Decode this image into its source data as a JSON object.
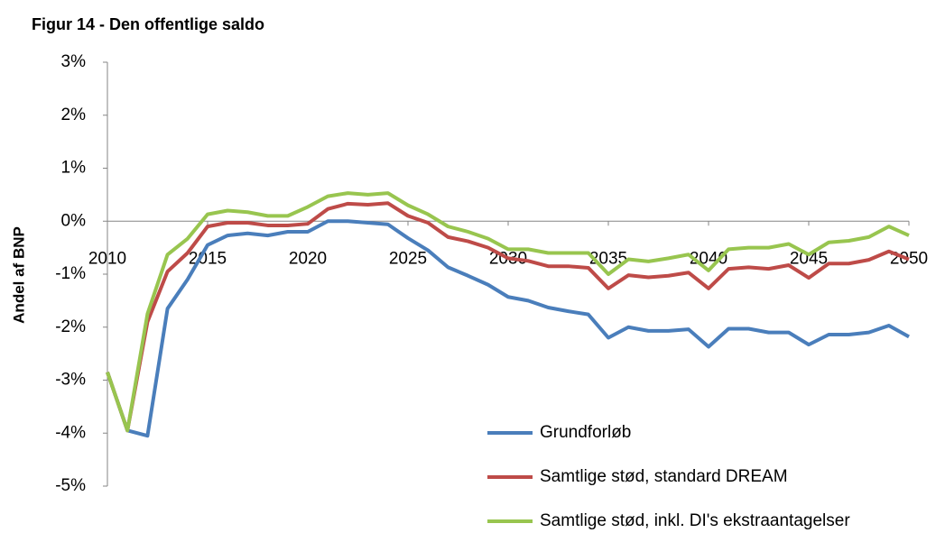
{
  "chart_data": {
    "type": "line",
    "title": "Figur 14 - Den offentlige saldo",
    "y_label": "Andel af BNP",
    "x": [
      2010,
      2011,
      2012,
      2013,
      2014,
      2015,
      2016,
      2017,
      2018,
      2019,
      2020,
      2021,
      2022,
      2023,
      2024,
      2025,
      2026,
      2027,
      2028,
      2029,
      2030,
      2031,
      2032,
      2033,
      2034,
      2035,
      2036,
      2037,
      2038,
      2039,
      2040,
      2041,
      2042,
      2043,
      2044,
      2045,
      2046,
      2047,
      2048,
      2049,
      2050
    ],
    "xlim": [
      2010,
      2050
    ],
    "xticks": [
      2010,
      2015,
      2020,
      2025,
      2030,
      2035,
      2040,
      2045,
      2050
    ],
    "ylim": [
      -5,
      3
    ],
    "yticks": [
      {
        "value": -5,
        "label": "-5%"
      },
      {
        "value": -4,
        "label": "-4%"
      },
      {
        "value": -3,
        "label": "-3%"
      },
      {
        "value": -2,
        "label": "-2%"
      },
      {
        "value": -1,
        "label": "-1%"
      },
      {
        "value": 0,
        "label": "0%"
      },
      {
        "value": 1,
        "label": "1%"
      },
      {
        "value": 2,
        "label": "2%"
      },
      {
        "value": 3,
        "label": "3%"
      }
    ],
    "grid": false,
    "series": [
      {
        "name": "Grundforløb",
        "color": "#4a7ebb",
        "values": [
          -2.85,
          -3.95,
          -4.05,
          -1.65,
          -1.1,
          -0.45,
          -0.27,
          -0.23,
          -0.27,
          -0.2,
          -0.2,
          0.0,
          0.0,
          -0.03,
          -0.06,
          -0.32,
          -0.55,
          -0.87,
          -1.03,
          -1.2,
          -1.43,
          -1.5,
          -1.63,
          -1.7,
          -1.76,
          -2.2,
          -2.0,
          -2.07,
          -2.07,
          -2.04,
          -2.37,
          -2.03,
          -2.03,
          -2.1,
          -2.1,
          -2.33,
          -2.14,
          -2.14,
          -2.1,
          -1.97,
          -2.18
        ]
      },
      {
        "name": "Samtlige stød, standard DREAM",
        "color": "#be4b48",
        "values": [
          -2.85,
          -3.95,
          -1.9,
          -0.95,
          -0.6,
          -0.1,
          -0.03,
          -0.03,
          -0.08,
          -0.08,
          -0.05,
          0.23,
          0.33,
          0.31,
          0.34,
          0.1,
          -0.03,
          -0.3,
          -0.38,
          -0.5,
          -0.7,
          -0.75,
          -0.85,
          -0.85,
          -0.88,
          -1.27,
          -1.02,
          -1.06,
          -1.03,
          -0.97,
          -1.27,
          -0.9,
          -0.87,
          -0.9,
          -0.83,
          -1.07,
          -0.8,
          -0.8,
          -0.73,
          -0.57,
          -0.72
        ]
      },
      {
        "name": "Samtlige stød, inkl. DI's ekstraantagelser",
        "color": "#98c54f",
        "values": [
          -2.85,
          -3.95,
          -1.75,
          -0.63,
          -0.33,
          0.13,
          0.2,
          0.17,
          0.1,
          0.1,
          0.27,
          0.47,
          0.53,
          0.5,
          0.53,
          0.3,
          0.13,
          -0.1,
          -0.2,
          -0.33,
          -0.53,
          -0.53,
          -0.6,
          -0.6,
          -0.6,
          -1.0,
          -0.72,
          -0.76,
          -0.7,
          -0.63,
          -0.93,
          -0.53,
          -0.5,
          -0.5,
          -0.43,
          -0.63,
          -0.4,
          -0.37,
          -0.3,
          -0.1,
          -0.27
        ]
      }
    ]
  }
}
